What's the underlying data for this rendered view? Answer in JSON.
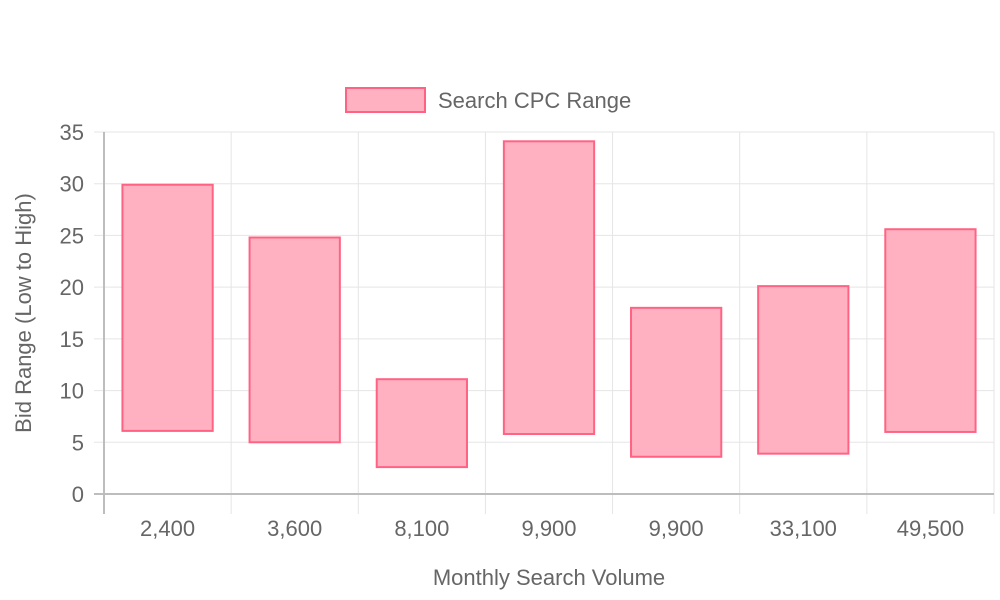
{
  "chart_data": {
    "type": "bar",
    "variant": "floating-range",
    "categories": [
      "2,400",
      "3,600",
      "8,100",
      "9,900",
      "9,900",
      "33,100",
      "49,500"
    ],
    "series": [
      {
        "name": "Search CPC Range",
        "ranges": [
          [
            6.1,
            29.9
          ],
          [
            5.0,
            24.8
          ],
          [
            2.6,
            11.1
          ],
          [
            5.8,
            34.1
          ],
          [
            3.6,
            18.0
          ],
          [
            3.9,
            20.1
          ],
          [
            6.0,
            25.6
          ]
        ]
      }
    ],
    "xlabel": "Monthly Search Volume",
    "ylabel": "Bid Range (Low to High)",
    "ylim": [
      0,
      35
    ],
    "yticks": [
      "0",
      "5",
      "10",
      "15",
      "20",
      "25",
      "30",
      "35"
    ],
    "grid": true,
    "legend_position": "top"
  },
  "colors": {
    "bar_fill": "#ffb1c1",
    "bar_stroke": "#ff6384",
    "grid": "#e5e5e5",
    "axis": "#bdbdbd",
    "text": "#666666"
  }
}
